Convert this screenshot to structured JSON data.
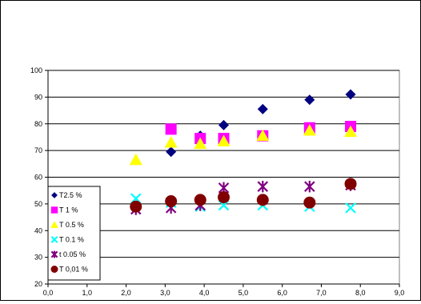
{
  "chart_data": {
    "type": "scatter",
    "title": "",
    "xlabel": "",
    "ylabel": "",
    "xlim": [
      0,
      9
    ],
    "ylim": [
      20,
      100
    ],
    "x_ticks": [
      "0,0",
      "1,0",
      "2,0",
      "3,0",
      "4,0",
      "5,0",
      "6,0",
      "7,0",
      "8,0",
      "9,0"
    ],
    "y_ticks": [
      "20",
      "30",
      "40",
      "50",
      "60",
      "70",
      "80",
      "90",
      "100"
    ],
    "grid": "horizontal",
    "plot_background": "#ffffff",
    "legend_position": "bottom-left",
    "series": [
      {
        "name": "T2.5 %",
        "marker": "diamond",
        "color": "#000080",
        "points": [
          [
            3.15,
            69.5
          ],
          [
            3.9,
            75.5
          ],
          [
            4.5,
            79.5
          ],
          [
            5.5,
            85.5
          ],
          [
            6.7,
            89
          ],
          [
            7.75,
            91
          ]
        ]
      },
      {
        "name": "T 1 %",
        "marker": "square",
        "color": "#ff00ff",
        "points": [
          [
            3.15,
            78
          ],
          [
            3.9,
            74.5
          ],
          [
            4.5,
            74.5
          ],
          [
            5.5,
            75.5
          ],
          [
            6.7,
            78.5
          ],
          [
            7.75,
            79
          ]
        ]
      },
      {
        "name": "T 0.5 %",
        "marker": "triangle",
        "color": "#ffff00",
        "points": [
          [
            2.25,
            66.5
          ],
          [
            3.15,
            73
          ],
          [
            3.9,
            72.5
          ],
          [
            4.5,
            73.5
          ],
          [
            5.5,
            75.5
          ],
          [
            6.7,
            77.5
          ],
          [
            7.75,
            77
          ]
        ]
      },
      {
        "name": "T 0.1 %",
        "marker": "x",
        "color": "#00ffff",
        "points": [
          [
            2.25,
            52
          ],
          [
            3.15,
            50.5
          ],
          [
            3.9,
            49
          ],
          [
            4.5,
            49.5
          ],
          [
            5.5,
            49.5
          ],
          [
            6.7,
            49
          ],
          [
            7.75,
            48.5
          ]
        ]
      },
      {
        "name": "t 0.05 %",
        "marker": "star",
        "color": "#800080",
        "points": [
          [
            2.25,
            48
          ],
          [
            3.15,
            48.5
          ],
          [
            3.9,
            49.5
          ],
          [
            4.5,
            56
          ],
          [
            5.5,
            56.5
          ],
          [
            6.7,
            56.5
          ],
          [
            7.75,
            57
          ]
        ]
      },
      {
        "name": "T 0,01 %",
        "marker": "circle",
        "color": "#800000",
        "points": [
          [
            2.25,
            49
          ],
          [
            3.15,
            51
          ],
          [
            3.9,
            51.5
          ],
          [
            4.5,
            52.5
          ],
          [
            5.5,
            51.5
          ],
          [
            6.7,
            50.5
          ],
          [
            7.75,
            57.5
          ]
        ]
      }
    ]
  }
}
